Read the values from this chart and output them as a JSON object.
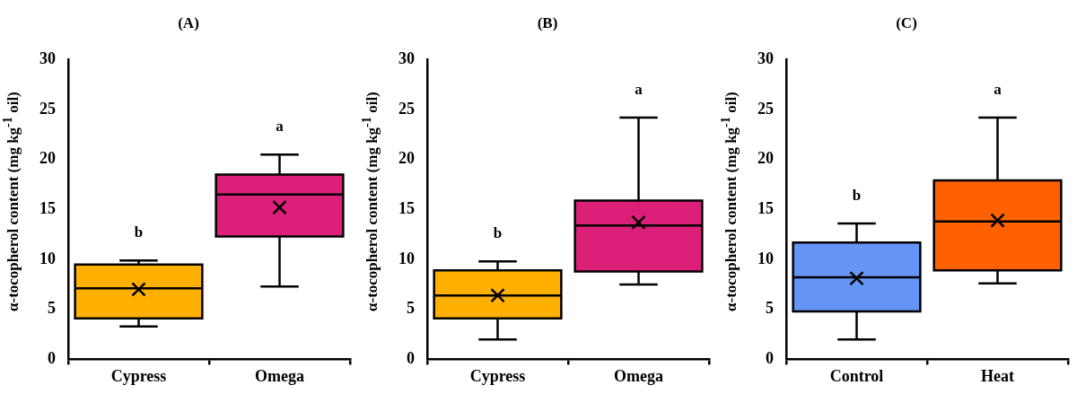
{
  "chart_data": [
    {
      "type": "box",
      "title": "(A)",
      "ylabel": "α-tocopherol content (mg kg$^{-1}$ oil)",
      "categories": [
        "Cypress",
        "Omega"
      ],
      "colors": [
        "#ffb000",
        "#dc207a"
      ],
      "ylim": [
        0,
        30
      ],
      "yticks": [
        0,
        5,
        10,
        15,
        20,
        25,
        30
      ],
      "boxes": [
        {
          "low": 3.3,
          "q1": 4.1,
          "median": 7.1,
          "q3": 9.5,
          "high": 9.9,
          "mean": 7.0
        },
        {
          "low": 7.3,
          "q1": 12.3,
          "median": 16.5,
          "q3": 18.5,
          "high": 20.5,
          "mean": 15.2
        }
      ],
      "annotations": [
        "b",
        "a"
      ]
    },
    {
      "type": "box",
      "title": "(B)",
      "ylabel": "α-tocopherol content (mg kg$^{-1}$ oil)",
      "categories": [
        "Cypress",
        "Omega"
      ],
      "colors": [
        "#ffb000",
        "#dc207a"
      ],
      "ylim": [
        0,
        30
      ],
      "yticks": [
        0,
        5,
        10,
        15,
        20,
        25,
        30
      ],
      "boxes": [
        {
          "low": 2.0,
          "q1": 4.1,
          "median": 6.4,
          "q3": 8.9,
          "high": 9.8,
          "mean": 6.4
        },
        {
          "low": 7.5,
          "q1": 8.8,
          "median": 13.4,
          "q3": 15.9,
          "high": 24.2,
          "mean": 13.7
        }
      ],
      "annotations": [
        "b",
        "a"
      ]
    },
    {
      "type": "box",
      "title": "(C)",
      "ylabel": "α-tocopherol content (mg kg$^{-1}$ oil)",
      "categories": [
        "Control",
        "Heat"
      ],
      "colors": [
        "#6495f5",
        "#ff6000"
      ],
      "ylim": [
        0,
        30
      ],
      "yticks": [
        0,
        5,
        10,
        15,
        20,
        25,
        30
      ],
      "boxes": [
        {
          "low": 2.0,
          "q1": 4.8,
          "median": 8.2,
          "q3": 11.7,
          "high": 13.6,
          "mean": 8.1
        },
        {
          "low": 7.6,
          "q1": 8.9,
          "median": 13.8,
          "q3": 17.9,
          "high": 24.2,
          "mean": 13.9
        }
      ],
      "annotations": [
        "b",
        "a"
      ]
    }
  ]
}
